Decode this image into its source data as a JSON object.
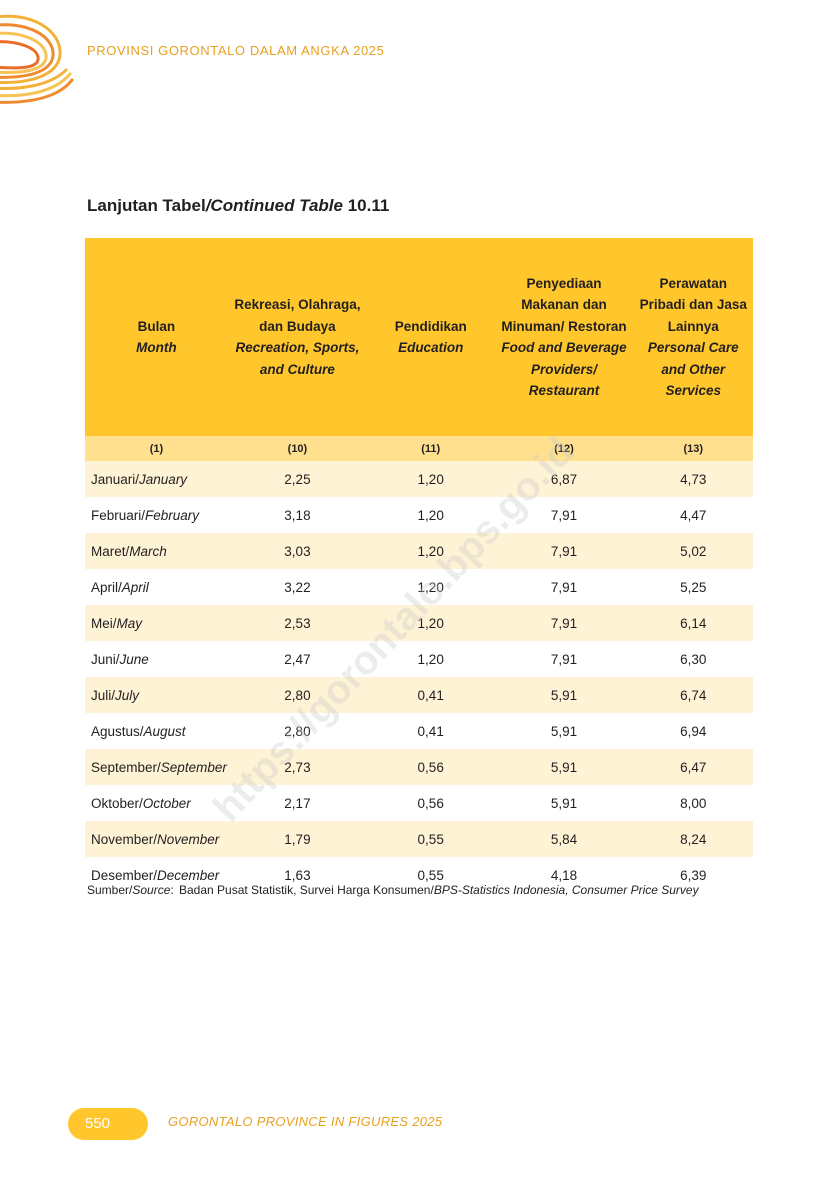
{
  "header": {
    "running_title": "PROVINSI GORONTALO DALAM ANGKA 2025"
  },
  "table_title": {
    "prefix": "Lanjutan Tabel",
    "italic": "/Continued Table",
    "number": " 10.11"
  },
  "columns": [
    {
      "id": "Bulan",
      "en": "Month",
      "num": "(1)"
    },
    {
      "id": "Rekreasi, Olahraga, dan Budaya",
      "en": "Recreation, Sports, and Culture",
      "num": "(10)"
    },
    {
      "id": "Pendidikan",
      "en": "Education",
      "num": "(11)"
    },
    {
      "id": "Penyediaan Makanan dan Minuman/ Restoran",
      "en": "Food and Beverage Providers/ Restaurant",
      "num": "(12)"
    },
    {
      "id": "Perawatan Pribadi dan Jasa Lainnya",
      "en": "Personal Care and Other Services",
      "num": "(13)"
    }
  ],
  "rows": [
    {
      "id": "Januari/",
      "en": "January",
      "v": [
        "2,25",
        "1,20",
        "6,87",
        "4,73"
      ]
    },
    {
      "id": "Februari/",
      "en": "February",
      "v": [
        "3,18",
        "1,20",
        "7,91",
        "4,47"
      ]
    },
    {
      "id": "Maret/",
      "en": "March",
      "v": [
        "3,03",
        "1,20",
        "7,91",
        "5,02"
      ]
    },
    {
      "id": "April/",
      "en": "April",
      "v": [
        "3,22",
        "1,20",
        "7,91",
        "5,25"
      ]
    },
    {
      "id": "Mei/",
      "en": "May",
      "v": [
        "2,53",
        "1,20",
        "7,91",
        "6,14"
      ]
    },
    {
      "id": "Juni/",
      "en": "June",
      "v": [
        "2,47",
        "1,20",
        "7,91",
        "6,30"
      ]
    },
    {
      "id": "Juli/",
      "en": "July",
      "v": [
        "2,80",
        "0,41",
        "5,91",
        "6,74"
      ]
    },
    {
      "id": "Agustus/",
      "en": "August",
      "v": [
        "2,80",
        "0,41",
        "5,91",
        "6,94"
      ]
    },
    {
      "id": "September/",
      "en": "September",
      "v": [
        "2,73",
        "0,56",
        "5,91",
        "6,47"
      ]
    },
    {
      "id": "Oktober/",
      "en": "October",
      "v": [
        "2,17",
        "0,56",
        "5,91",
        "8,00"
      ]
    },
    {
      "id": "November/",
      "en": "November",
      "v": [
        "1,79",
        "0,55",
        "5,84",
        "8,24"
      ]
    },
    {
      "id": "Desember/",
      "en": "December",
      "v": [
        "1,63",
        "0,55",
        "4,18",
        "6,39"
      ]
    }
  ],
  "source": {
    "label_id": "Sumber/",
    "label_en": "Source",
    "colon": ":",
    "text_id": "Badan Pusat Statistik, Survei Harga Konsumen/",
    "text_en": "BPS-Statistics Indonesia, Consumer Price Survey"
  },
  "watermark": "https://gorontalo.bps.go.id",
  "footer": {
    "page_number": "550",
    "title": "GORONTALO PROVINCE IN FIGURES 2025"
  },
  "colors": {
    "header_yellow": "#ffc72c",
    "band_yellow": "#ffe08f",
    "row_band": "#fff3d6",
    "accent_orange": "#e8a020"
  }
}
